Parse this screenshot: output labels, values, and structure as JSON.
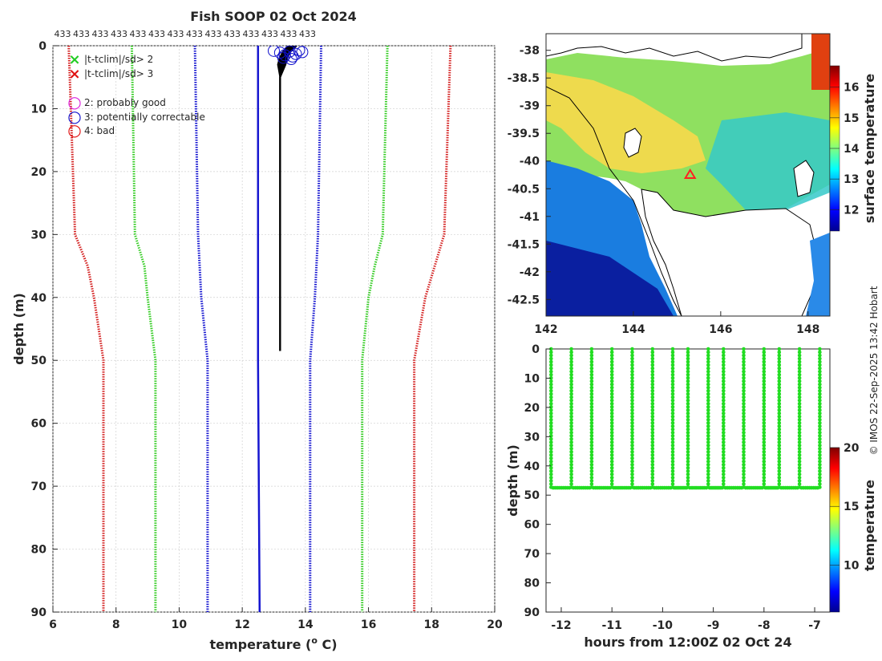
{
  "profile_chart": {
    "type": "line",
    "title": "Fish SOOP 02 Oct 2024",
    "xlabel": "temperature (",
    "xlabel_sup": "o",
    "xlabel_end": " C)",
    "ylabel": "depth (m)",
    "xlim": [
      6,
      20
    ],
    "ylim": [
      0,
      90
    ],
    "xticks": [
      "6",
      "8",
      "10",
      "12",
      "14",
      "16",
      "18",
      "20"
    ],
    "yticks": [
      "0",
      "10",
      "20",
      "30",
      "40",
      "50",
      "60",
      "70",
      "80",
      "90"
    ],
    "top_counts": [
      "433",
      "433",
      "433",
      "433",
      "433",
      "433",
      "433",
      "433",
      "433",
      "433",
      "433",
      "433",
      "433",
      "433"
    ],
    "legend": [
      {
        "symbol": "×",
        "color": "#22cc22",
        "label": "|t-tclim|/sd> 2"
      },
      {
        "symbol": "×",
        "color": "#e01010",
        "label": "|t-tclim|/sd> 3"
      },
      {
        "symbol": "○",
        "color": "#dd22dd",
        "label": "2: probably good"
      },
      {
        "symbol": "○",
        "color": "#1010cc",
        "label": "3: potentially correctable"
      },
      {
        "symbol": "○",
        "color": "#e01010",
        "label": "4: bad"
      }
    ],
    "series": [
      {
        "name": "clim -3sd",
        "color": "#d42020",
        "depth": [
          0,
          30,
          35,
          40,
          50,
          90
        ],
        "temp": [
          6.5,
          6.7,
          7.1,
          7.3,
          7.6,
          7.6
        ]
      },
      {
        "name": "clim -2sd",
        "color": "#33cc22",
        "depth": [
          0,
          30,
          35,
          40,
          50,
          90
        ],
        "temp": [
          8.5,
          8.6,
          8.9,
          9.0,
          9.25,
          9.25
        ]
      },
      {
        "name": "clim -1sd",
        "color": "#1515d0",
        "depth": [
          0,
          30,
          40,
          50,
          90
        ],
        "temp": [
          10.5,
          10.6,
          10.7,
          10.9,
          10.9
        ]
      },
      {
        "name": "clim mean",
        "color": "#1515d0",
        "depth": [
          0,
          30,
          50,
          90
        ],
        "temp": [
          12.5,
          12.5,
          12.5,
          12.55
        ]
      },
      {
        "name": "clim +1sd",
        "color": "#1515d0",
        "depth": [
          0,
          30,
          40,
          50,
          90
        ],
        "temp": [
          14.5,
          14.4,
          14.3,
          14.15,
          14.15
        ]
      },
      {
        "name": "clim +2sd",
        "color": "#33cc22",
        "depth": [
          0,
          30,
          35,
          40,
          50,
          90
        ],
        "temp": [
          16.6,
          16.45,
          16.2,
          16.0,
          15.8,
          15.8
        ]
      },
      {
        "name": "clim +3sd",
        "color": "#d42020",
        "depth": [
          0,
          30,
          35,
          40,
          50,
          90
        ],
        "temp": [
          18.6,
          18.4,
          18.1,
          17.8,
          17.45,
          17.45
        ]
      }
    ],
    "observed_profile": {
      "color": "#000000",
      "depth": [
        0,
        1,
        2,
        3,
        5,
        10,
        20,
        30,
        40,
        48.5
      ],
      "temp": [
        13.6,
        13.4,
        13.3,
        13.25,
        13.2,
        13.2,
        13.2,
        13.2,
        13.2,
        13.2
      ]
    }
  },
  "map_chart": {
    "type": "heatmap",
    "xlim": [
      142,
      148.5
    ],
    "ylim": [
      -42.8,
      -37.7
    ],
    "xticks": [
      "142",
      "144",
      "146",
      "148"
    ],
    "yticks": [
      "-38",
      "-38.5",
      "-39",
      "-39.5",
      "-40",
      "-40.5",
      "-41",
      "-41.5",
      "-42",
      "-42.5"
    ],
    "colorbar_label": "surface temperature",
    "colorbar_ticks": [
      "12",
      "13",
      "14",
      "15",
      "16"
    ],
    "colorbar_range": [
      11.3,
      16.7
    ],
    "marker": {
      "lon": 145.3,
      "lat": -40.25,
      "color": "#ff2020"
    }
  },
  "section_chart": {
    "type": "scatter",
    "xlabel": "hours from 12:00Z 02 Oct 24",
    "ylabel": "depth (m)",
    "xlim": [
      -12.3,
      -6.7
    ],
    "ylim": [
      0,
      90
    ],
    "xticks": [
      "-12",
      "-11",
      "-10",
      "-9",
      "-8",
      "-7"
    ],
    "yticks": [
      "0",
      "10",
      "20",
      "30",
      "40",
      "50",
      "60",
      "70",
      "80",
      "90"
    ],
    "colorbar_label": "temperature",
    "colorbar_ticks": [
      "10",
      "15",
      "20"
    ],
    "colorbar_range": [
      6,
      20
    ],
    "cast_times": [
      -12.2,
      -11.8,
      -11.4,
      -11.0,
      -10.6,
      -10.2,
      -9.8,
      -9.5,
      -9.1,
      -8.8,
      -8.4,
      -8.0,
      -7.7,
      -7.3,
      -6.9
    ],
    "max_depth": 47.5,
    "point_color": "#22dd22"
  },
  "watermark": "© IMOS 22-Sep-2025 13:42 Hobart"
}
